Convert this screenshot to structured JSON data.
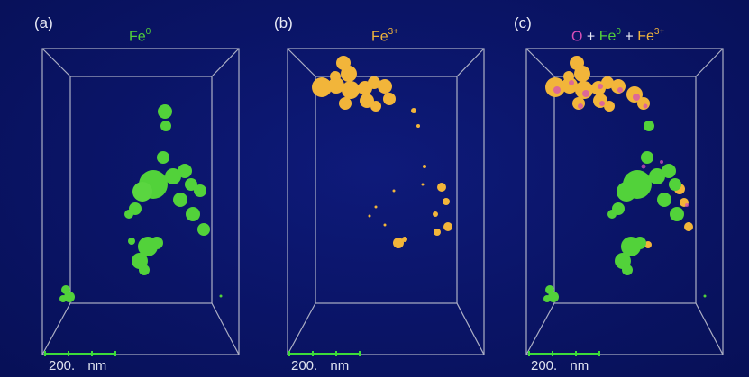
{
  "panels": [
    {
      "label": "(a)",
      "title_parts": [
        {
          "base": "Fe",
          "sup": "0",
          "color": "#52d23a"
        }
      ],
      "scale": {
        "value": "200.",
        "unit": "nm"
      }
    },
    {
      "label": "(b)",
      "title_parts": [
        {
          "base": "Fe",
          "sup": "3+",
          "color": "#f2b53a"
        }
      ],
      "scale": {
        "value": "200.",
        "unit": "nm"
      }
    },
    {
      "label": "(c)",
      "title": {
        "o": "O",
        "plus": "+",
        "fe0": "Fe",
        "fe0_sup": "0",
        "fe3": "Fe",
        "fe3_sup": "3+"
      },
      "scale": {
        "value": "200.",
        "unit": "nm"
      }
    }
  ],
  "colors": {
    "background": "#0a1466",
    "fe0": "#52d23a",
    "fe3": "#f2b53a",
    "oxygen": "#d64fb6",
    "box": "#c9cbd6",
    "scale_bar": "#3ddc3a"
  }
}
